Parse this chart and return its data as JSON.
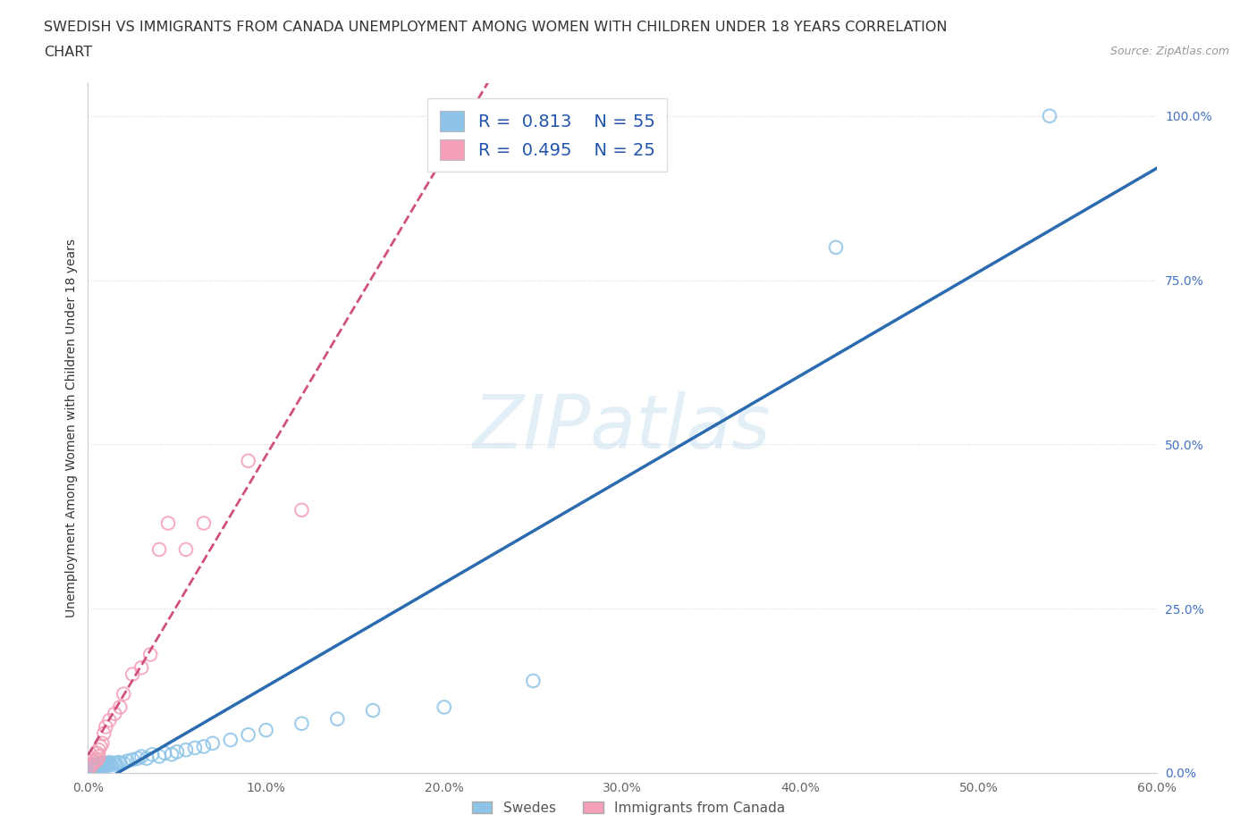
{
  "title_line1": "SWEDISH VS IMMIGRANTS FROM CANADA UNEMPLOYMENT AMONG WOMEN WITH CHILDREN UNDER 18 YEARS CORRELATION",
  "title_line2": "CHART",
  "source": "Source: ZipAtlas.com",
  "ylabel": "Unemployment Among Women with Children Under 18 years",
  "xlim": [
    0.0,
    0.6
  ],
  "ylim": [
    0.0,
    1.05
  ],
  "xticks": [
    0.0,
    0.1,
    0.2,
    0.3,
    0.4,
    0.5,
    0.6
  ],
  "xticklabels": [
    "0.0%",
    "10.0%",
    "20.0%",
    "30.0%",
    "40.0%",
    "50.0%",
    "60.0%"
  ],
  "yticks": [
    0.0,
    0.25,
    0.5,
    0.75,
    1.0
  ],
  "yticklabels": [
    "0.0%",
    "25.0%",
    "50.0%",
    "75.0%",
    "100.0%"
  ],
  "swedes_color": "#8ec4e8",
  "immigrants_color": "#f4a0b8",
  "regression_blue_color": "#2b6cb0",
  "regression_pink_color": "#d05080",
  "watermark_color": "#c8e0f0",
  "legend_R1": "0.813",
  "legend_N1": "55",
  "legend_R2": "0.495",
  "legend_N2": "25",
  "legend_label1": "Swedes",
  "legend_label2": "Immigrants from Canada",
  "swedes_x": [
    0.001,
    0.002,
    0.002,
    0.003,
    0.003,
    0.003,
    0.004,
    0.004,
    0.005,
    0.005,
    0.005,
    0.006,
    0.006,
    0.007,
    0.007,
    0.008,
    0.008,
    0.009,
    0.009,
    0.01,
    0.01,
    0.011,
    0.012,
    0.012,
    0.013,
    0.014,
    0.015,
    0.016,
    0.017,
    0.018,
    0.02,
    0.022,
    0.025,
    0.028,
    0.03,
    0.033,
    0.036,
    0.04,
    0.043,
    0.047,
    0.05,
    0.055,
    0.06,
    0.065,
    0.07,
    0.08,
    0.09,
    0.1,
    0.12,
    0.14,
    0.16,
    0.2,
    0.25,
    0.42,
    0.54
  ],
  "swedes_y": [
    0.005,
    0.008,
    0.01,
    0.007,
    0.009,
    0.012,
    0.008,
    0.011,
    0.007,
    0.01,
    0.013,
    0.009,
    0.012,
    0.01,
    0.014,
    0.008,
    0.013,
    0.011,
    0.015,
    0.01,
    0.014,
    0.012,
    0.013,
    0.016,
    0.012,
    0.015,
    0.014,
    0.013,
    0.016,
    0.015,
    0.015,
    0.018,
    0.02,
    0.022,
    0.025,
    0.022,
    0.028,
    0.025,
    0.03,
    0.028,
    0.032,
    0.035,
    0.038,
    0.04,
    0.045,
    0.05,
    0.058,
    0.065,
    0.075,
    0.082,
    0.095,
    0.1,
    0.14,
    0.8,
    1.0
  ],
  "immigrants_x": [
    0.001,
    0.002,
    0.003,
    0.004,
    0.005,
    0.005,
    0.006,
    0.006,
    0.007,
    0.008,
    0.009,
    0.01,
    0.012,
    0.015,
    0.018,
    0.02,
    0.025,
    0.03,
    0.035,
    0.04,
    0.045,
    0.055,
    0.065,
    0.09,
    0.12
  ],
  "immigrants_y": [
    0.008,
    0.012,
    0.015,
    0.018,
    0.02,
    0.03,
    0.025,
    0.035,
    0.04,
    0.045,
    0.06,
    0.07,
    0.08,
    0.09,
    0.1,
    0.12,
    0.15,
    0.16,
    0.18,
    0.34,
    0.38,
    0.34,
    0.38,
    0.475,
    0.4
  ]
}
